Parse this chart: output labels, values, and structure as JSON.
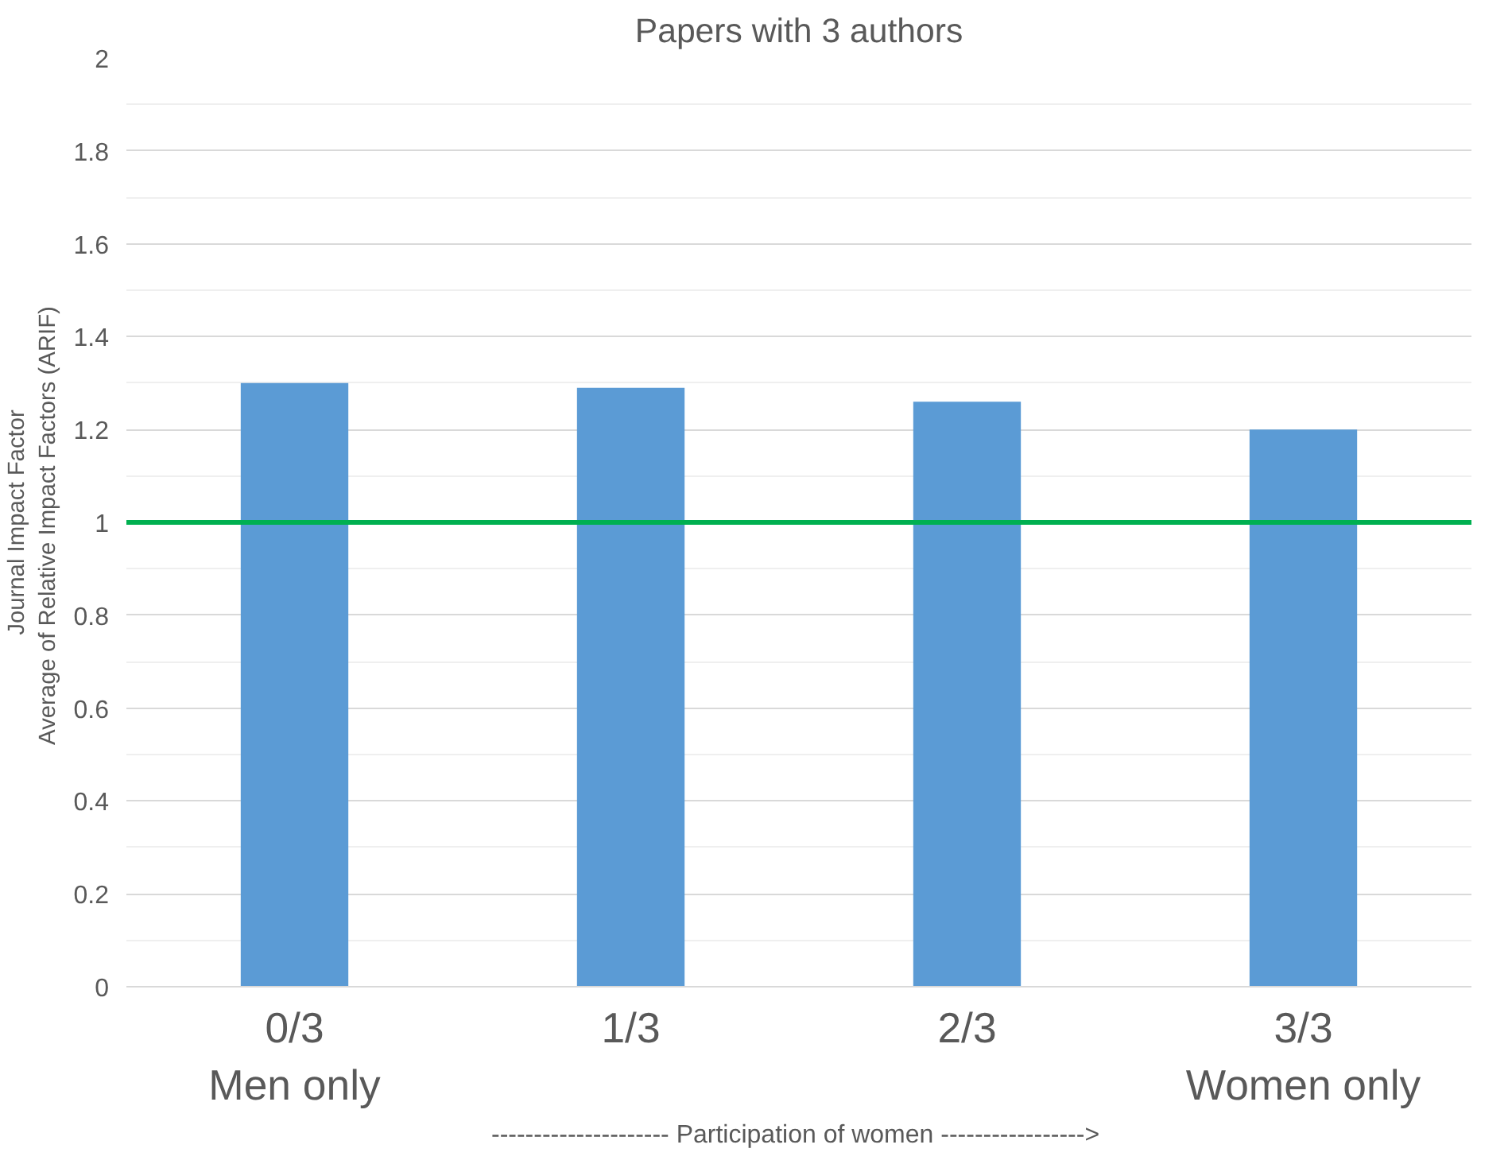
{
  "chart_data": {
    "type": "bar",
    "title": "Papers with 3 authors",
    "categories": [
      "0/3\nMen only",
      "1/3",
      "2/3",
      "3/3\nWomen only"
    ],
    "values": [
      1.3,
      1.29,
      1.26,
      1.2
    ],
    "color": "#5b9bd5",
    "ylim": [
      0,
      2
    ],
    "yticks": [
      0,
      0.2,
      0.4,
      0.6,
      0.8,
      1,
      1.2,
      1.4,
      1.6,
      1.8,
      2
    ],
    "ylabel": "Journal Impact Factor\nAverage of Relative Impact Factors  (ARIF)",
    "xlabel": "---------------------  Participation of women ----------------->",
    "ref_lines": [
      {
        "axis": "y",
        "value": 1,
        "color": "#00b050"
      }
    ],
    "grid": "y"
  }
}
